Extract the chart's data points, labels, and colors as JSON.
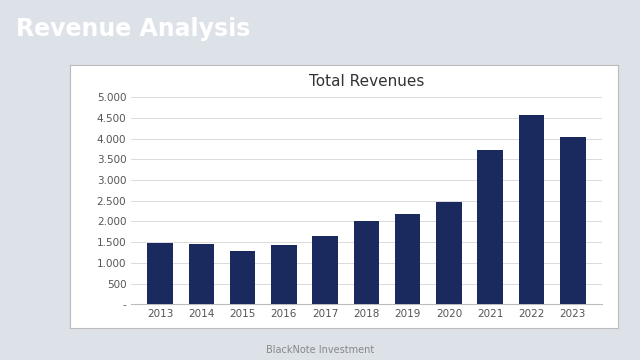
{
  "title": "Total Revenues",
  "header_title": "Revenue Analysis",
  "footer_text": "BlackNote Investment",
  "years": [
    2013,
    2014,
    2015,
    2016,
    2017,
    2018,
    2019,
    2020,
    2021,
    2022,
    2023
  ],
  "values": [
    1490,
    1460,
    1290,
    1440,
    1650,
    2020,
    2180,
    2480,
    3720,
    4570,
    4030
  ],
  "bar_color": "#1a2a5e",
  "header_bg": "#1a2a5e",
  "header_text_color": "#ffffff",
  "chart_bg": "#ffffff",
  "outer_bg": "#dde1e8",
  "ylim": [
    0,
    5000
  ],
  "yticks": [
    0,
    500,
    1000,
    1500,
    2000,
    2500,
    3000,
    3500,
    4000,
    4500,
    5000
  ],
  "ytick_labels": [
    "-",
    "500",
    "1.000",
    "1.500",
    "2.000",
    "2.500",
    "3.000",
    "3.500",
    "4.000",
    "4.500",
    "5.000"
  ]
}
